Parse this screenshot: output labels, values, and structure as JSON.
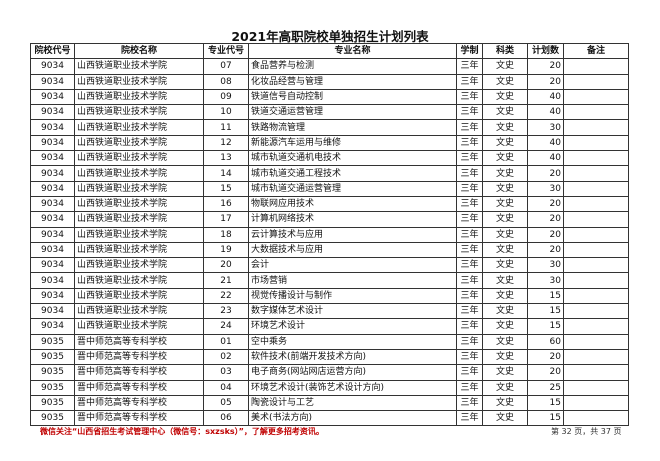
{
  "title": "2021年高职院校单独招生计划列表",
  "headers": [
    "院校代号",
    "院校名称",
    "专业代号",
    "专业名称",
    "学制",
    "科类",
    "计划数",
    "备注"
  ],
  "rows": [
    [
      "9034",
      "山西铁道职业技术学院",
      "07",
      "食品营养与检测",
      "三年",
      "文史",
      "20",
      ""
    ],
    [
      "9034",
      "山西铁道职业技术学院",
      "08",
      "化妆品经营与管理",
      "三年",
      "文史",
      "20",
      ""
    ],
    [
      "9034",
      "山西铁道职业技术学院",
      "09",
      "铁道信号自动控制",
      "三年",
      "文史",
      "40",
      ""
    ],
    [
      "9034",
      "山西铁道职业技术学院",
      "10",
      "铁道交通运营管理",
      "三年",
      "文史",
      "40",
      ""
    ],
    [
      "9034",
      "山西铁道职业技术学院",
      "11",
      "铁路物流管理",
      "三年",
      "文史",
      "30",
      ""
    ],
    [
      "9034",
      "山西铁道职业技术学院",
      "12",
      "新能源汽车运用与维修",
      "三年",
      "文史",
      "40",
      ""
    ],
    [
      "9034",
      "山西铁道职业技术学院",
      "13",
      "城市轨道交通机电技术",
      "三年",
      "文史",
      "40",
      ""
    ],
    [
      "9034",
      "山西铁道职业技术学院",
      "14",
      "城市轨道交通工程技术",
      "三年",
      "文史",
      "20",
      ""
    ],
    [
      "9034",
      "山西铁道职业技术学院",
      "15",
      "城市轨道交通运营管理",
      "三年",
      "文史",
      "30",
      ""
    ],
    [
      "9034",
      "山西铁道职业技术学院",
      "16",
      "物联网应用技术",
      "三年",
      "文史",
      "20",
      ""
    ],
    [
      "9034",
      "山西铁道职业技术学院",
      "17",
      "计算机网络技术",
      "三年",
      "文史",
      "20",
      ""
    ],
    [
      "9034",
      "山西铁道职业技术学院",
      "18",
      "云计算技术与应用",
      "三年",
      "文史",
      "20",
      ""
    ],
    [
      "9034",
      "山西铁道职业技术学院",
      "19",
      "大数据技术与应用",
      "三年",
      "文史",
      "20",
      ""
    ],
    [
      "9034",
      "山西铁道职业技术学院",
      "20",
      "会计",
      "三年",
      "文史",
      "30",
      ""
    ],
    [
      "9034",
      "山西铁道职业技术学院",
      "21",
      "市场营销",
      "三年",
      "文史",
      "30",
      ""
    ],
    [
      "9034",
      "山西铁道职业技术学院",
      "22",
      "视觉传播设计与制作",
      "三年",
      "文史",
      "15",
      ""
    ],
    [
      "9034",
      "山西铁道职业技术学院",
      "23",
      "数字媒体艺术设计",
      "三年",
      "文史",
      "15",
      ""
    ],
    [
      "9034",
      "山西铁道职业技术学院",
      "24",
      "环境艺术设计",
      "三年",
      "文史",
      "15",
      ""
    ],
    [
      "9035",
      "晋中师范高等专科学校",
      "01",
      "空中乘务",
      "三年",
      "文史",
      "60",
      ""
    ],
    [
      "9035",
      "晋中师范高等专科学校",
      "02",
      "软件技术(前端开发技术方向)",
      "三年",
      "文史",
      "20",
      ""
    ],
    [
      "9035",
      "晋中师范高等专科学校",
      "03",
      "电子商务(网站网店运营方向)",
      "三年",
      "文史",
      "20",
      ""
    ],
    [
      "9035",
      "晋中师范高等专科学校",
      "04",
      "环境艺术设计(装饰艺术设计方向)",
      "三年",
      "文史",
      "25",
      ""
    ],
    [
      "9035",
      "晋中师范高等专科学校",
      "05",
      "陶瓷设计与工艺",
      "三年",
      "文史",
      "15",
      ""
    ],
    [
      "9035",
      "晋中师范高等专科学校",
      "06",
      "美术(书法方向)",
      "三年",
      "文史",
      "15",
      ""
    ]
  ],
  "footer": "微信关注“山西省招生考试管理中心（微信号：sxzsks）”，了解更多招考资讯。",
  "page_number": "第 32 页，共 37 页",
  "colors": {
    "footer": "#c00000",
    "border": "#333333"
  }
}
